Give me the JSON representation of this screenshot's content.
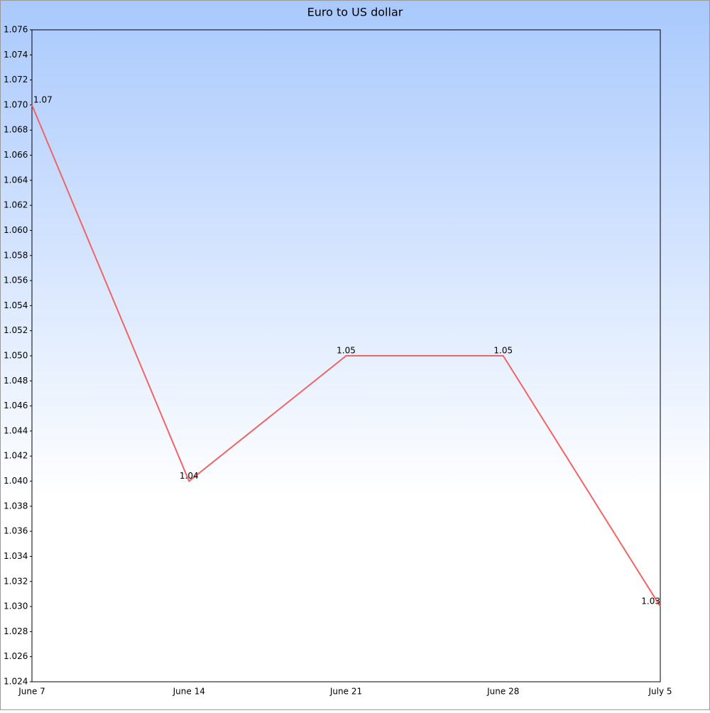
{
  "chart_data": {
    "type": "line",
    "title": "Euro to US dollar",
    "categories": [
      "June 7",
      "June 14",
      "June 21",
      "June 28",
      "July 5"
    ],
    "values": [
      1.07,
      1.04,
      1.05,
      1.05,
      1.03
    ],
    "color": "#f06464",
    "ylim": [
      1.024,
      1.076
    ],
    "yticks": [
      1.024,
      1.026,
      1.028,
      {
        "value": 1.03,
        "label": "1.030"
      },
      1.032,
      1.034,
      1.036,
      1.038,
      {
        "value": 1.04,
        "label": "1.040"
      },
      1.042,
      1.044,
      1.046,
      1.048,
      {
        "value": 1.05,
        "label": "1.050"
      },
      1.052,
      1.054,
      1.056,
      1.058,
      {
        "value": 1.06,
        "label": "1.060"
      },
      1.062,
      1.064,
      1.066,
      1.068,
      {
        "value": 1.07,
        "label": "1.070"
      },
      1.072,
      1.074,
      1.076
    ]
  }
}
